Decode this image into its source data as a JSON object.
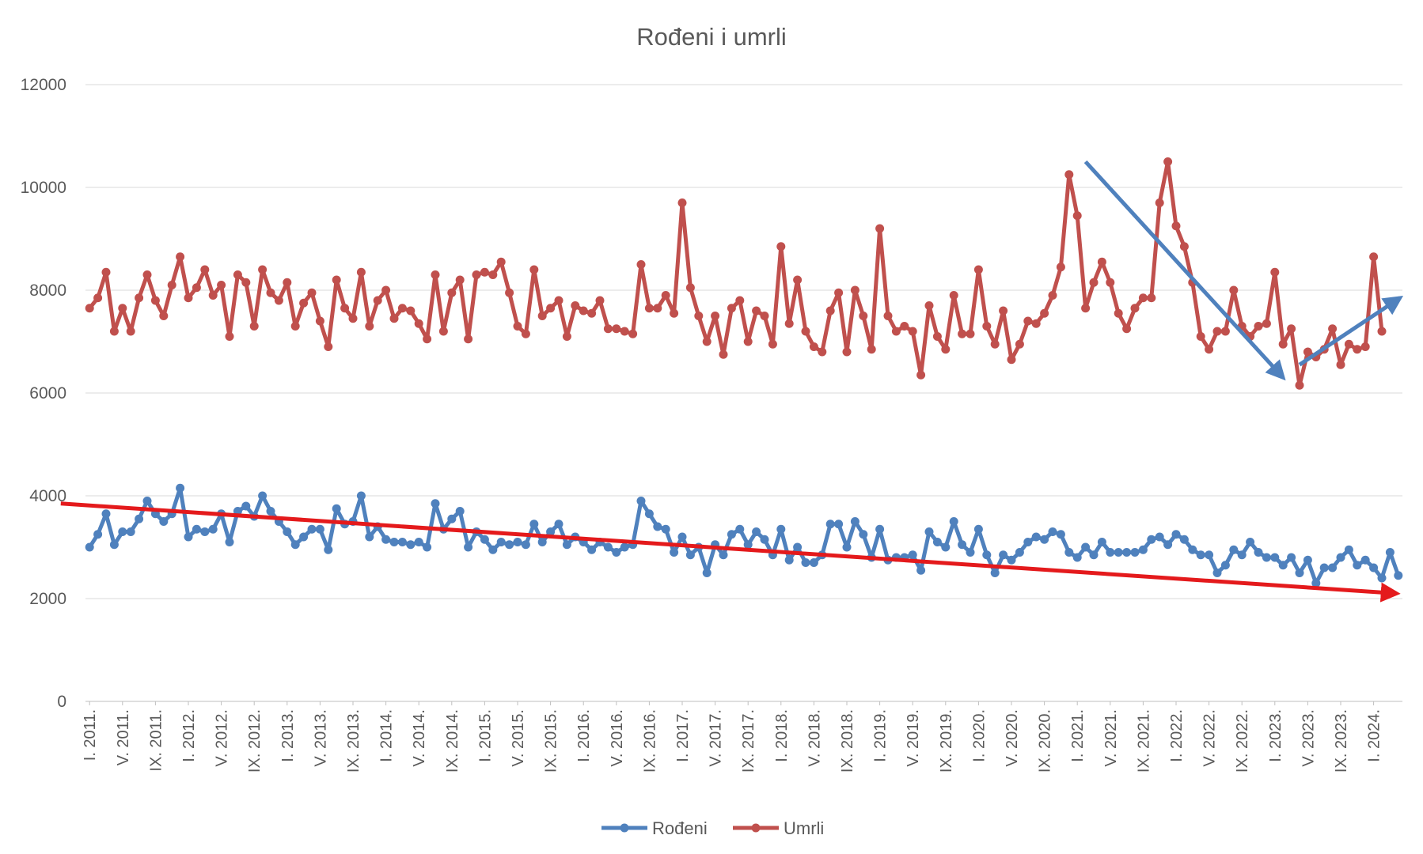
{
  "chart_data": {
    "type": "line",
    "title": "Rođeni i umrli",
    "xlabel": "",
    "ylabel": "",
    "ylim": [
      0,
      12000
    ],
    "yticks": [
      0,
      2000,
      4000,
      6000,
      8000,
      10000,
      12000
    ],
    "grid": "horizontal",
    "legend": "bottom",
    "x_tick_labels": [
      "I. 2011.",
      "V. 2011.",
      "IX. 2011.",
      "I. 2012.",
      "V. 2012.",
      "IX. 2012.",
      "I. 2013.",
      "V. 2013.",
      "IX. 2013.",
      "I. 2014.",
      "V. 2014.",
      "IX. 2014.",
      "I. 2015.",
      "V. 2015.",
      "IX. 2015.",
      "I. 2016.",
      "V. 2016.",
      "IX. 2016.",
      "I. 2017.",
      "V. 2017.",
      "IX. 2017.",
      "I. 2018.",
      "V. 2018.",
      "IX. 2018.",
      "I. 2019.",
      "V. 2019.",
      "IX. 2019.",
      "I. 2020.",
      "V. 2020.",
      "IX. 2020.",
      "I. 2021.",
      "V. 2021.",
      "IX. 2021.",
      "I. 2022.",
      "V. 2022.",
      "IX. 2022.",
      "I. 2023.",
      "V. 2023.",
      "IX. 2023.",
      "I. 2024."
    ],
    "x_tick_every": 4,
    "series": [
      {
        "name": "Rođeni",
        "color": "#4f81bd",
        "values": [
          3000,
          3250,
          3650,
          3050,
          3300,
          3300,
          3550,
          3900,
          3650,
          3500,
          3650,
          4150,
          3200,
          3350,
          3300,
          3350,
          3650,
          3100,
          3700,
          3800,
          3600,
          4000,
          3700,
          3500,
          3300,
          3050,
          3200,
          3350,
          3350,
          2950,
          3750,
          3450,
          3500,
          4000,
          3200,
          3400,
          3150,
          3100,
          3100,
          3050,
          3100,
          3000,
          3850,
          3350,
          3550,
          3700,
          3000,
          3300,
          3150,
          2950,
          3100,
          3050,
          3100,
          3050,
          3450,
          3100,
          3300,
          3450,
          3050,
          3200,
          3100,
          2950,
          3100,
          3000,
          2900,
          3000,
          3050,
          3900,
          3650,
          3400,
          3350,
          2900,
          3200,
          2850,
          3000,
          2500,
          3050,
          2850,
          3250,
          3350,
          3050,
          3300,
          3150,
          2850,
          3350,
          2750,
          3000,
          2700,
          2700,
          2850,
          3450,
          3450,
          3000,
          3500,
          3250,
          2800,
          3350,
          2750,
          2800,
          2800,
          2850,
          2550,
          3300,
          3100,
          3000,
          3500,
          3050,
          2900,
          3350,
          2850,
          2500,
          2850,
          2750,
          2900,
          3100,
          3200,
          3150,
          3300,
          3250,
          2900,
          2800,
          3000,
          2850,
          3100,
          2900,
          2900,
          2900,
          2900,
          2950,
          3150,
          3200,
          3050,
          3250,
          3150,
          2950,
          2850,
          2850,
          2500,
          2650,
          2950,
          2850,
          3100,
          2900,
          2800,
          2800,
          2650,
          2800,
          2500,
          2750,
          2300,
          2600,
          2600,
          2800,
          2950,
          2650,
          2750,
          2600,
          2400,
          2900,
          2450
        ]
      },
      {
        "name": "Umrli",
        "color": "#c0504d",
        "values": [
          7650,
          7850,
          8350,
          7200,
          7650,
          7200,
          7850,
          8300,
          7800,
          7500,
          8100,
          8650,
          7850,
          8050,
          8400,
          7900,
          8100,
          7100,
          8300,
          8150,
          7300,
          8400,
          7950,
          7800,
          8150,
          7300,
          7750,
          7950,
          7400,
          6900,
          8200,
          7650,
          7450,
          8350,
          7300,
          7800,
          8000,
          7450,
          7650,
          7600,
          7350,
          7050,
          8300,
          7200,
          7950,
          8200,
          7050,
          8300,
          8350,
          8300,
          8550,
          7950,
          7300,
          7150,
          8400,
          7500,
          7650,
          7800,
          7100,
          7700,
          7600,
          7550,
          7800,
          7250,
          7250,
          7200,
          7150,
          8500,
          7650,
          7650,
          7900,
          7550,
          9700,
          8050,
          7500,
          7000,
          7500,
          6750,
          7650,
          7800,
          7000,
          7600,
          7500,
          6950,
          8850,
          7350,
          8200,
          7200,
          6900,
          6800,
          7600,
          7950,
          6800,
          8000,
          7500,
          6850,
          9200,
          7500,
          7200,
          7300,
          7200,
          6350,
          7700,
          7100,
          6850,
          7900,
          7150,
          7150,
          8400,
          7300,
          6950,
          7600,
          6650,
          6950,
          7400,
          7350,
          7550,
          7900,
          8450,
          10250,
          9450,
          7650,
          8150,
          8550,
          8150,
          7550,
          7250,
          7650,
          7850,
          7850,
          9700,
          10500,
          9250,
          8850,
          8150,
          7100,
          6850,
          7200,
          7200,
          8000,
          7300,
          7100,
          7300,
          7350,
          8350,
          6950,
          7250,
          6150,
          6800,
          6700,
          6850,
          7250,
          6550,
          6950,
          6850,
          6900,
          8650,
          7200
        ]
      }
    ],
    "annotations": [
      {
        "type": "arrow",
        "color": "#e41a1c",
        "desc": "declining trend over Rođeni"
      },
      {
        "type": "arrow",
        "color": "#4f81bd",
        "desc": "downward over Umrli 2021-2023"
      },
      {
        "type": "arrow",
        "color": "#4f81bd",
        "desc": "upward over Umrli 2023-2024"
      }
    ]
  }
}
